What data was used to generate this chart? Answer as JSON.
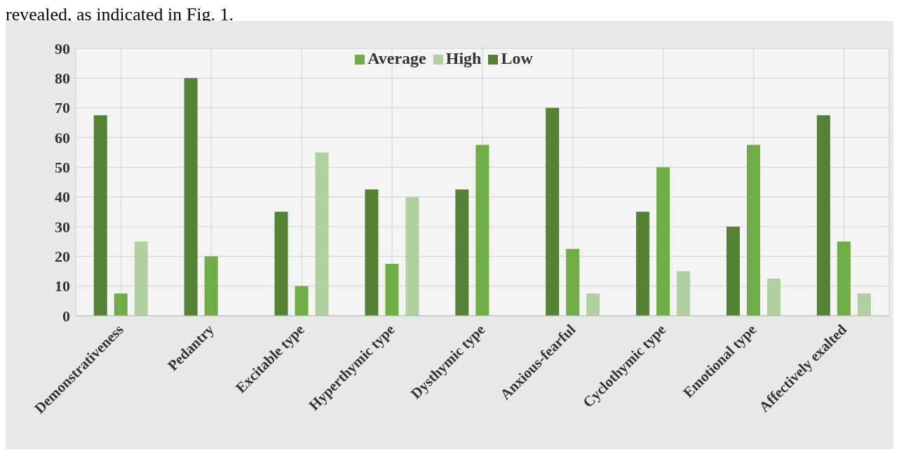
{
  "chart_data": {
    "type": "bar",
    "annotations": [
      "revealed, as indicated in Fig. 1."
    ],
    "categories": [
      "Demonstrativeness",
      "Pedantry",
      "Excitable type",
      "Hyperthymic type",
      "Dysthymic type",
      "Anxious-fearful",
      "Cyclothymic type",
      "Emotional type",
      "Affectively exalted"
    ],
    "series": [
      {
        "name": "Low",
        "color": "#548235",
        "values": [
          67.5,
          80,
          35,
          42.5,
          42.5,
          70,
          35,
          30,
          67.5
        ]
      },
      {
        "name": "Average",
        "color": "#70ad47",
        "values": [
          7.5,
          20,
          10,
          17.5,
          57.5,
          22.5,
          50,
          57.5,
          25
        ]
      },
      {
        "name": "High",
        "color": "#b0d0a0",
        "values": [
          25,
          0,
          55,
          40,
          0,
          7.5,
          15,
          12.5,
          7.5
        ]
      }
    ],
    "ylim": [
      0,
      90
    ],
    "yticks": [
      0,
      10,
      20,
      30,
      40,
      50,
      60,
      70,
      80,
      90
    ],
    "grid": true,
    "legend": "top"
  }
}
